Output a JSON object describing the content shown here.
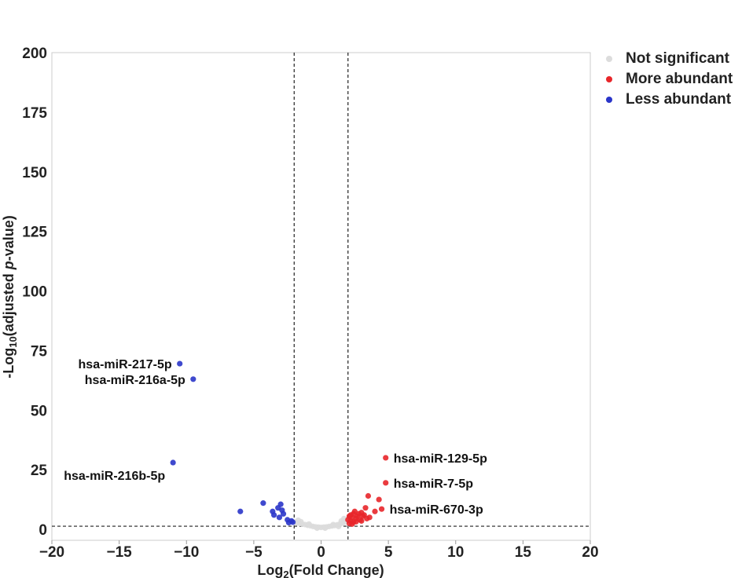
{
  "chart_data": {
    "type": "scatter",
    "title": "",
    "xlabel": "Log2(Fold Change)",
    "xlabel_base": "Log",
    "xlabel_sub": "2",
    "xlabel_rest": "(Fold Change)",
    "ylabel": "-Log10(adjusted p-value)",
    "ylabel_pre": "-Log",
    "ylabel_sub": "10",
    "ylabel_mid": "(adjusted ",
    "ylabel_ital": "p",
    "ylabel_post": "-value)",
    "xlim": [
      -20,
      20
    ],
    "ylim": [
      0,
      200
    ],
    "xticks": [
      -20,
      -15,
      -10,
      -5,
      0,
      5,
      10,
      15,
      20
    ],
    "xtick_labels": [
      "−20",
      "−15",
      "−10",
      "−5",
      "0",
      "5",
      "10",
      "15",
      "20"
    ],
    "yticks": [
      0,
      25,
      50,
      75,
      100,
      125,
      150,
      175,
      200
    ],
    "ytick_labels": [
      "0",
      "25",
      "50",
      "75",
      "100",
      "125",
      "150",
      "175",
      "200"
    ],
    "thresholds": {
      "fc_low": -2,
      "fc_high": 2,
      "pvalue_line": 1.3
    },
    "legend": {
      "position": "top-right",
      "entries": [
        {
          "name": "Not significant",
          "color": "#dcdcdc"
        },
        {
          "name": "More abundant",
          "color": "#e8262a"
        },
        {
          "name": "Less abundant",
          "color": "#2a35c9"
        }
      ]
    },
    "series": [
      {
        "name": "Not significant",
        "color": "#dcdcdc",
        "points": [
          [
            -1.9,
            3.0
          ],
          [
            -1.8,
            2.7
          ],
          [
            -1.6,
            2.5
          ],
          [
            -1.4,
            2.2
          ],
          [
            -1.2,
            2.0
          ],
          [
            -1.0,
            1.7
          ],
          [
            -0.8,
            1.5
          ],
          [
            -0.6,
            1.2
          ],
          [
            -0.4,
            1.0
          ],
          [
            -0.2,
            0.9
          ],
          [
            0.0,
            0.8
          ],
          [
            0.2,
            0.9
          ],
          [
            0.4,
            1.0
          ],
          [
            0.6,
            1.2
          ],
          [
            0.8,
            1.4
          ],
          [
            1.0,
            1.6
          ],
          [
            1.2,
            1.9
          ],
          [
            1.4,
            2.2
          ],
          [
            1.6,
            2.6
          ],
          [
            1.8,
            3.0
          ],
          [
            1.9,
            4.0
          ],
          [
            1.5,
            3.5
          ],
          [
            -1.5,
            3.2
          ],
          [
            0.3,
            0.5
          ],
          [
            -0.3,
            0.5
          ],
          [
            1.7,
            4.5
          ],
          [
            -1.7,
            3.8
          ],
          [
            0.9,
            2.0
          ],
          [
            -0.9,
            2.2
          ],
          [
            1.3,
            1.2
          ]
        ]
      },
      {
        "name": "More abundant",
        "color": "#e8262a",
        "points": [
          [
            4.8,
            30.0
          ],
          [
            4.8,
            19.5
          ],
          [
            4.5,
            8.5
          ],
          [
            4.3,
            12.5
          ],
          [
            3.5,
            14.0
          ],
          [
            4.0,
            7.5
          ],
          [
            3.3,
            9.0
          ],
          [
            3.1,
            5.5
          ],
          [
            3.0,
            7.0
          ],
          [
            2.8,
            6.5
          ],
          [
            2.6,
            4.5
          ],
          [
            2.5,
            7.5
          ],
          [
            2.3,
            5.0
          ],
          [
            2.2,
            3.5
          ],
          [
            2.1,
            2.5
          ],
          [
            2.2,
            6.0
          ],
          [
            2.4,
            3.0
          ],
          [
            2.7,
            5.5
          ],
          [
            2.9,
            4.0
          ],
          [
            3.2,
            6.0
          ],
          [
            3.4,
            4.5
          ],
          [
            3.6,
            5.0
          ],
          [
            2.0,
            4.0
          ],
          [
            2.1,
            5.5
          ],
          [
            2.3,
            2.2
          ],
          [
            2.6,
            3.2
          ],
          [
            3.0,
            3.5
          ],
          [
            2.4,
            6.5
          ]
        ]
      },
      {
        "name": "Less abundant",
        "color": "#2a35c9",
        "points": [
          [
            -10.5,
            69.5
          ],
          [
            -9.5,
            63.0
          ],
          [
            -11.0,
            28.0
          ],
          [
            -6.0,
            7.5
          ],
          [
            -4.3,
            11.0
          ],
          [
            -3.6,
            7.5
          ],
          [
            -3.5,
            6.0
          ],
          [
            -3.2,
            9.0
          ],
          [
            -3.0,
            10.5
          ],
          [
            -2.9,
            8.0
          ],
          [
            -3.1,
            5.0
          ],
          [
            -2.8,
            6.5
          ],
          [
            -2.5,
            4.0
          ],
          [
            -2.2,
            3.5
          ],
          [
            -2.1,
            3.0
          ],
          [
            -2.4,
            2.8
          ]
        ]
      }
    ],
    "annotations": [
      {
        "text": "hsa-miR-217-5p",
        "point": [
          -10.5,
          69.5
        ],
        "anchor": "end"
      },
      {
        "text": "hsa-miR-216a-5p",
        "point": [
          -9.5,
          63.0
        ],
        "anchor": "end"
      },
      {
        "text": "hsa-miR-216b-5p",
        "point": [
          -11.0,
          28.0
        ],
        "anchor": "end"
      },
      {
        "text": "hsa-miR-129-5p",
        "point": [
          4.8,
          30.0
        ],
        "anchor": "start"
      },
      {
        "text": "hsa-miR-7-5p",
        "point": [
          4.8,
          19.5
        ],
        "anchor": "start"
      },
      {
        "text": "hsa-miR-670-3p",
        "point": [
          4.5,
          8.5
        ],
        "anchor": "start"
      }
    ]
  }
}
